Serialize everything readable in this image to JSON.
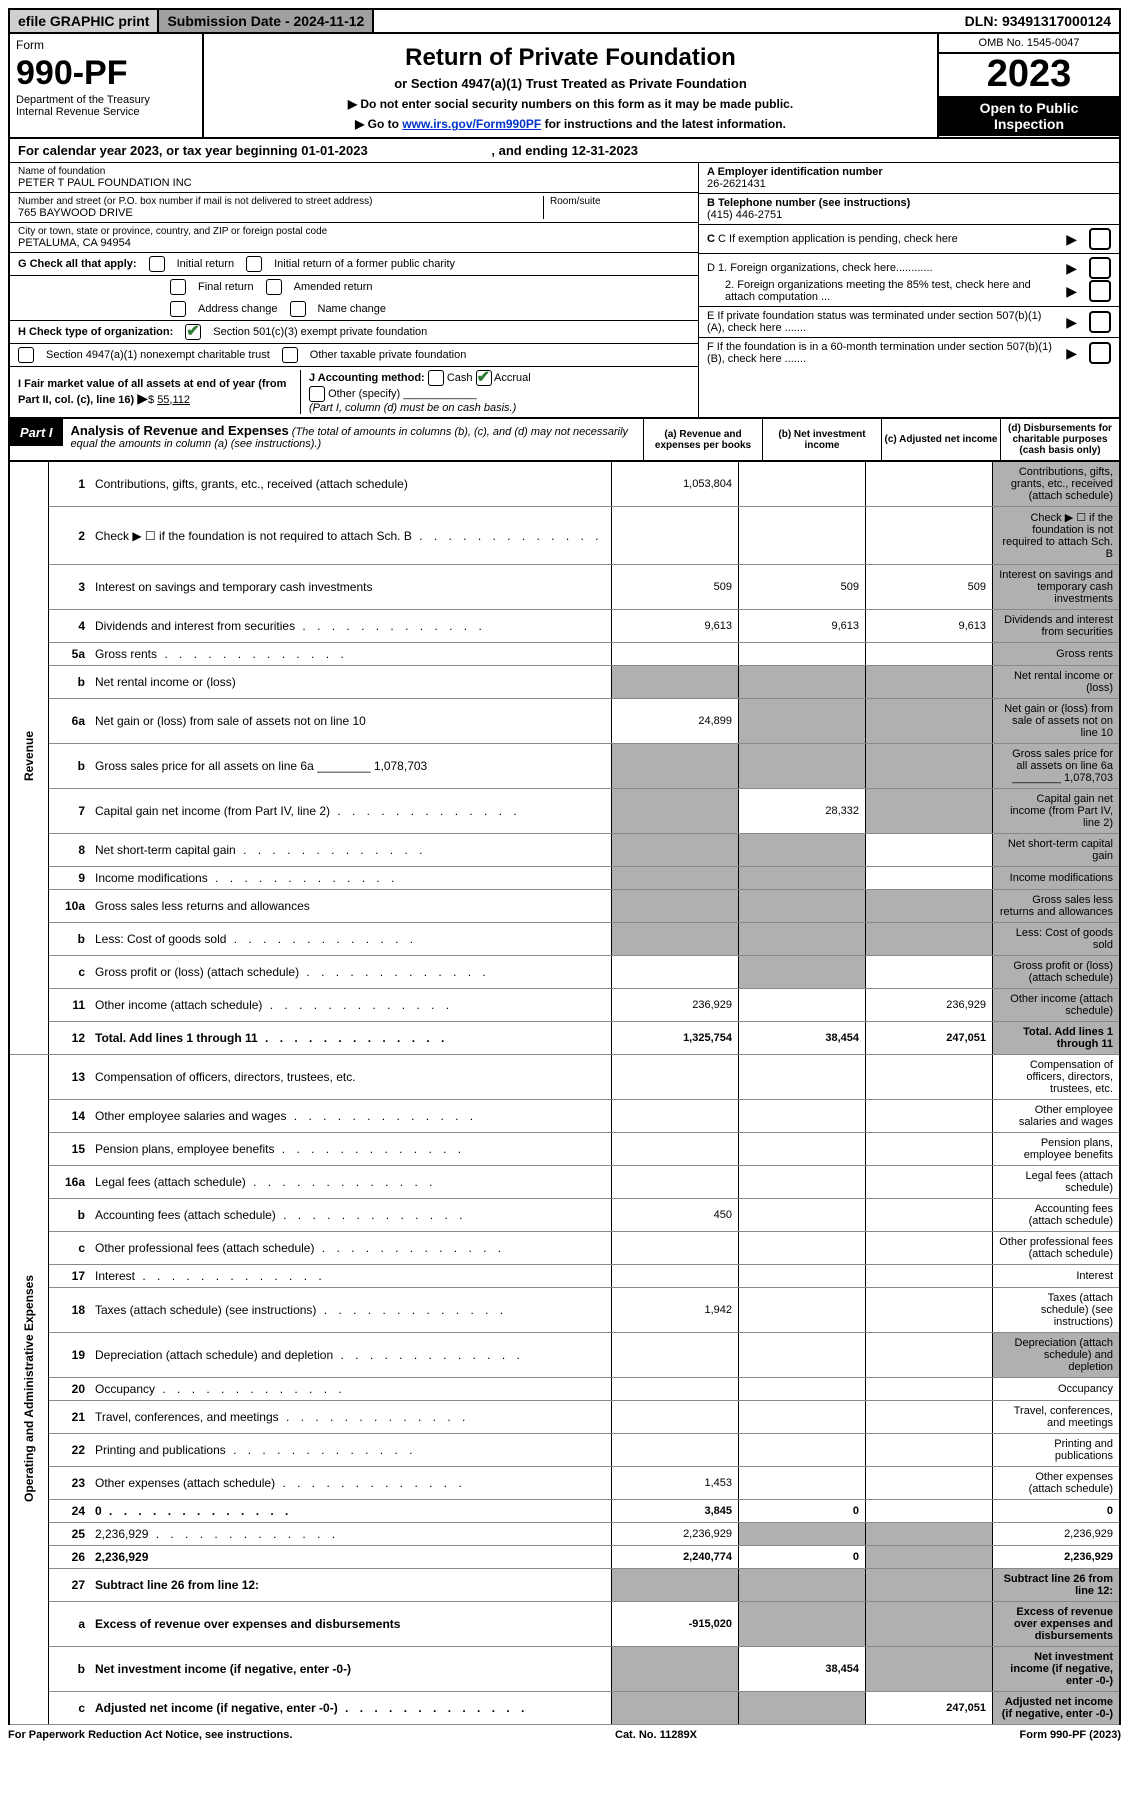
{
  "topbar": {
    "efile": "efile GRAPHIC print",
    "subdate_label": "Submission Date - 2024-11-12",
    "dln": "DLN: 93491317000124"
  },
  "header": {
    "form_label": "Form",
    "form_no": "990-PF",
    "dept": "Department of the Treasury",
    "irs": "Internal Revenue Service",
    "title": "Return of Private Foundation",
    "subtitle": "or Section 4947(a)(1) Trust Treated as Private Foundation",
    "instr1": "▶ Do not enter social security numbers on this form as it may be made public.",
    "instr2_pre": "▶ Go to ",
    "instr2_link": "www.irs.gov/Form990PF",
    "instr2_post": " for instructions and the latest information.",
    "omb": "OMB No. 1545-0047",
    "year": "2023",
    "inspect": "Open to Public Inspection"
  },
  "calyear": {
    "text_a": "For calendar year 2023, or tax year beginning 01-01-2023",
    "text_b": ", and ending 12-31-2023"
  },
  "info": {
    "name_label": "Name of foundation",
    "name": "PETER T PAUL FOUNDATION INC",
    "addr_label": "Number and street (or P.O. box number if mail is not delivered to street address)",
    "addr": "765 BAYWOOD DRIVE",
    "room_label": "Room/suite",
    "city_label": "City or town, state or province, country, and ZIP or foreign postal code",
    "city": "PETALUMA, CA  94954",
    "ein_label": "A Employer identification number",
    "ein": "26-2621431",
    "phone_label": "B Telephone number (see instructions)",
    "phone": "(415) 446-2751",
    "c_label": "C If exemption application is pending, check here",
    "d1": "D 1. Foreign organizations, check here............",
    "d2": "2. Foreign organizations meeting the 85% test, check here and attach computation ...",
    "e_label": "E  If private foundation status was terminated under section 507(b)(1)(A), check here .......",
    "f_label": "F  If the foundation is in a 60-month termination under section 507(b)(1)(B), check here .......",
    "g_label": "G Check all that apply:",
    "g_opts": [
      "Initial return",
      "Initial return of a former public charity",
      "Final return",
      "Amended return",
      "Address change",
      "Name change"
    ],
    "h_label": "H Check type of organization:",
    "h_opt1": "Section 501(c)(3) exempt private foundation",
    "h_opt2": "Section 4947(a)(1) nonexempt charitable trust",
    "h_opt3": "Other taxable private foundation",
    "i_label": "I Fair market value of all assets at end of year (from Part II, col. (c), line 16)",
    "i_val": "55,112",
    "j_label": "J Accounting method:",
    "j_cash": "Cash",
    "j_accrual": "Accrual",
    "j_other": "Other (specify)",
    "j_note": "(Part I, column (d) must be on cash basis.)"
  },
  "part1": {
    "label": "Part I",
    "title": "Analysis of Revenue and Expenses",
    "note": " (The total of amounts in columns (b), (c), and (d) may not necessarily equal the amounts in column (a) (see instructions).)",
    "cols": {
      "a": "(a) Revenue and expenses per books",
      "b": "(b) Net investment income",
      "c": "(c) Adjusted net income",
      "d": "(d) Disbursements for charitable purposes (cash basis only)"
    },
    "side_rev": "Revenue",
    "side_exp": "Operating and Administrative Expenses"
  },
  "rows": [
    {
      "n": "1",
      "d": "Contributions, gifts, grants, etc., received (attach schedule)",
      "a": "1,053,804",
      "shade_d": true
    },
    {
      "n": "2",
      "d": "Check ▶ ☐ if the foundation is not required to attach Sch. B",
      "dots": true,
      "shade_d": true
    },
    {
      "n": "3",
      "d": "Interest on savings and temporary cash investments",
      "a": "509",
      "b": "509",
      "c": "509",
      "shade_d": true
    },
    {
      "n": "4",
      "d": "Dividends and interest from securities",
      "dots": true,
      "a": "9,613",
      "b": "9,613",
      "c": "9,613",
      "shade_d": true
    },
    {
      "n": "5a",
      "d": "Gross rents",
      "dots": true,
      "shade_d": true
    },
    {
      "n": "b",
      "d": "Net rental income or (loss)",
      "shade_a": true,
      "shade_b": true,
      "shade_c": true,
      "shade_d": true
    },
    {
      "n": "6a",
      "d": "Net gain or (loss) from sale of assets not on line 10",
      "a": "24,899",
      "shade_b": true,
      "shade_c": true,
      "shade_d": true
    },
    {
      "n": "b",
      "d": "Gross sales price for all assets on line 6a ________ 1,078,703",
      "shade_a": true,
      "shade_b": true,
      "shade_c": true,
      "shade_d": true
    },
    {
      "n": "7",
      "d": "Capital gain net income (from Part IV, line 2)",
      "dots": true,
      "shade_a": true,
      "b": "28,332",
      "shade_c": true,
      "shade_d": true
    },
    {
      "n": "8",
      "d": "Net short-term capital gain",
      "dots": true,
      "shade_a": true,
      "shade_b": true,
      "shade_d": true
    },
    {
      "n": "9",
      "d": "Income modifications",
      "dots": true,
      "shade_a": true,
      "shade_b": true,
      "shade_d": true
    },
    {
      "n": "10a",
      "d": "Gross sales less returns and allowances",
      "shade_a": true,
      "shade_b": true,
      "shade_c": true,
      "shade_d": true
    },
    {
      "n": "b",
      "d": "Less: Cost of goods sold",
      "dots": true,
      "shade_a": true,
      "shade_b": true,
      "shade_c": true,
      "shade_d": true
    },
    {
      "n": "c",
      "d": "Gross profit or (loss) (attach schedule)",
      "dots": true,
      "shade_b": true,
      "shade_d": true
    },
    {
      "n": "11",
      "d": "Other income (attach schedule)",
      "dots": true,
      "a": "236,929",
      "c": "236,929",
      "shade_d": true
    },
    {
      "n": "12",
      "d": "Total. Add lines 1 through 11",
      "dots": true,
      "bold": true,
      "a": "1,325,754",
      "b": "38,454",
      "c": "247,051",
      "shade_d": true
    },
    {
      "n": "13",
      "d": "Compensation of officers, directors, trustees, etc."
    },
    {
      "n": "14",
      "d": "Other employee salaries and wages",
      "dots": true
    },
    {
      "n": "15",
      "d": "Pension plans, employee benefits",
      "dots": true
    },
    {
      "n": "16a",
      "d": "Legal fees (attach schedule)",
      "dots": true
    },
    {
      "n": "b",
      "d": "Accounting fees (attach schedule)",
      "dots": true,
      "a": "450"
    },
    {
      "n": "c",
      "d": "Other professional fees (attach schedule)",
      "dots": true
    },
    {
      "n": "17",
      "d": "Interest",
      "dots": true
    },
    {
      "n": "18",
      "d": "Taxes (attach schedule) (see instructions)",
      "dots": true,
      "a": "1,942"
    },
    {
      "n": "19",
      "d": "Depreciation (attach schedule) and depletion",
      "dots": true,
      "shade_d": true
    },
    {
      "n": "20",
      "d": "Occupancy",
      "dots": true
    },
    {
      "n": "21",
      "d": "Travel, conferences, and meetings",
      "dots": true
    },
    {
      "n": "22",
      "d": "Printing and publications",
      "dots": true
    },
    {
      "n": "23",
      "d": "Other expenses (attach schedule)",
      "dots": true,
      "a": "1,453"
    },
    {
      "n": "24",
      "d": "0",
      "dots": true,
      "bold": true,
      "a": "3,845",
      "b": "0"
    },
    {
      "n": "25",
      "d": "2,236,929",
      "dots": true,
      "a": "2,236,929",
      "shade_b": true,
      "shade_c": true
    },
    {
      "n": "26",
      "d": "2,236,929",
      "bold": true,
      "a": "2,240,774",
      "b": "0",
      "shade_c": true
    },
    {
      "n": "27",
      "d": "Subtract line 26 from line 12:",
      "bold": true,
      "shade_a": true,
      "shade_b": true,
      "shade_c": true,
      "shade_d": true
    },
    {
      "n": "a",
      "d": "Excess of revenue over expenses and disbursements",
      "bold": true,
      "a": "-915,020",
      "shade_b": true,
      "shade_c": true,
      "shade_d": true
    },
    {
      "n": "b",
      "d": "Net investment income (if negative, enter -0-)",
      "bold": true,
      "shade_a": true,
      "b": "38,454",
      "shade_c": true,
      "shade_d": true
    },
    {
      "n": "c",
      "d": "Adjusted net income (if negative, enter -0-)",
      "bold": true,
      "dots": true,
      "shade_a": true,
      "shade_b": true,
      "c": "247,051",
      "shade_d": true
    }
  ],
  "footer": {
    "left": "For Paperwork Reduction Act Notice, see instructions.",
    "mid": "Cat. No. 11289X",
    "right": "Form 990-PF (2023)"
  }
}
